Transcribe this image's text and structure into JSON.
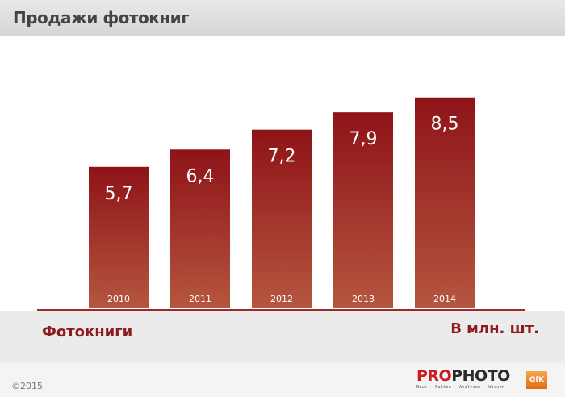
{
  "header": {
    "title": "Продажи фотокниг"
  },
  "legend": {
    "series_label": "Фотокниги",
    "unit_label": "В млн. шт."
  },
  "footer": {
    "copyright": "©2015",
    "logo_pro": "PRO",
    "logo_photo": "PHOTO",
    "logo_tagline": "News · Fakten · Analysen · Wissen",
    "partner_logo": "GfK"
  },
  "colors": {
    "bar_top": "#8e1318",
    "bar_bottom": "#b5563f",
    "axis": "#a02a26",
    "label": "#ffffff"
  },
  "chart_data": {
    "type": "bar",
    "title": "Продажи фотокниг",
    "categories": [
      "2010",
      "2011",
      "2012",
      "2013",
      "2014"
    ],
    "values": [
      5.7,
      6.4,
      7.2,
      7.9,
      8.5
    ],
    "value_labels": [
      "5,7",
      "6,4",
      "7,2",
      "7,9",
      "8,5"
    ],
    "series": [
      {
        "name": "Фотокниги",
        "values": [
          5.7,
          6.4,
          7.2,
          7.9,
          8.5
        ]
      }
    ],
    "unit": "В млн. шт.",
    "ylim": [
      0,
      9.5
    ],
    "grid": false
  }
}
